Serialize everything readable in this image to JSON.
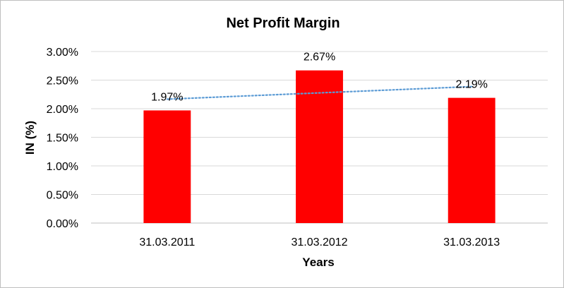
{
  "chart_data": {
    "type": "bar",
    "title": "Net Profit Margin",
    "xlabel": "Years",
    "ylabel": "IN (%)",
    "categories": [
      "31.03.2011",
      "31.03.2012",
      "31.03.2013"
    ],
    "series": [
      {
        "values": [
          1.97,
          2.67,
          2.19
        ],
        "labels": [
          "1.97%",
          "2.67%",
          "2.19%"
        ],
        "color": "#ff0000"
      }
    ],
    "trendline": {
      "type": "linear",
      "style": "dotted",
      "color": "#5b9bd5"
    },
    "ylim": [
      0,
      3
    ],
    "yticks": [
      0,
      0.5,
      1,
      1.5,
      2,
      2.5,
      3
    ],
    "ytick_labels": [
      "0.00%",
      "0.50%",
      "1.00%",
      "1.50%",
      "2.00%",
      "2.50%",
      "3.00%"
    ],
    "grid": true,
    "legend": "none",
    "colors": {
      "bar": "#ff0000",
      "grid": "#d9d9d9",
      "trendline": "#5b9bd5"
    }
  }
}
